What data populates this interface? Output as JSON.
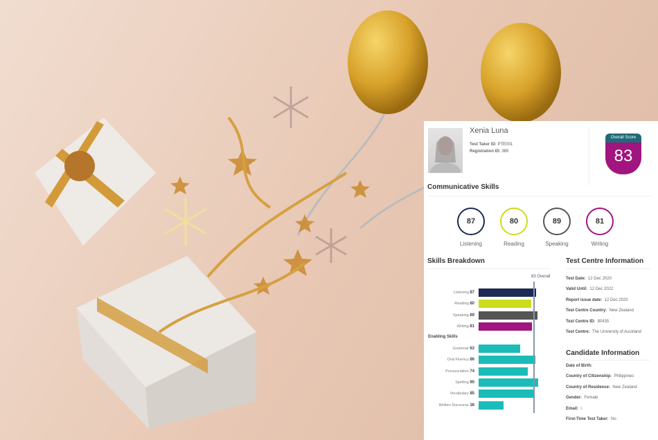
{
  "report": {
    "name": "Xenia Luna",
    "test_taker_id_label": "Test Taker ID:",
    "test_taker_id": "PTE001",
    "registration_id_label": "Registration ID:",
    "registration_id": "385",
    "overall_label": "Overall Score",
    "overall_score": "83",
    "communicative_title": "Communicative Skills",
    "communicative": [
      {
        "label": "Listening",
        "score": "87",
        "color": "#1c2a55"
      },
      {
        "label": "Reading",
        "score": "80",
        "color": "#cddc1c"
      },
      {
        "label": "Speaking",
        "score": "89",
        "color": "#555555"
      },
      {
        "label": "Writing",
        "score": "81",
        "color": "#a0157e"
      }
    ],
    "breakdown_title": "Skills Breakdown",
    "overall_marker": "83 Overall",
    "overall_value": 83,
    "enabling_title": "Enabling Skills",
    "skills": [
      {
        "label": "Listening",
        "score": 87,
        "color": "#1c2a55"
      },
      {
        "label": "Reading",
        "score": 80,
        "color": "#cddc1c"
      },
      {
        "label": "Speaking",
        "score": 89,
        "color": "#555555"
      },
      {
        "label": "Writing",
        "score": 81,
        "color": "#a0157e"
      }
    ],
    "enabling": [
      {
        "label": "Grammar",
        "score": 63,
        "color": "#1bbcb8"
      },
      {
        "label": "Oral Fluency",
        "score": 86,
        "color": "#1bbcb8"
      },
      {
        "label": "Pronunciation",
        "score": 74,
        "color": "#1bbcb8"
      },
      {
        "label": "Spelling",
        "score": 90,
        "color": "#1bbcb8"
      },
      {
        "label": "Vocabulary",
        "score": 85,
        "color": "#1bbcb8"
      },
      {
        "label": "Written Discourse",
        "score": 38,
        "color": "#1bbcb8"
      }
    ],
    "centre_title": "Test Centre Information",
    "centre": [
      {
        "k": "Test Date:",
        "v": "12 Dec 2020"
      },
      {
        "k": "Valid Until:",
        "v": "12 Dec 2022"
      },
      {
        "k": "Report issue date:",
        "v": "12 Dec 2020"
      },
      {
        "k": "Test Centre Country:",
        "v": "New Zealand"
      },
      {
        "k": "Test Centre ID:",
        "v": "80435"
      },
      {
        "k": "Test Centre:",
        "v": "The University of Auckland"
      }
    ],
    "candidate_title": "Candidate Information",
    "candidate": [
      {
        "k": "Date of Birth:",
        "v": ""
      },
      {
        "k": "Country of Citizenship:",
        "v": "Philippines"
      },
      {
        "k": "Country of Residence:",
        "v": "New Zealand"
      },
      {
        "k": "Gender:",
        "v": "Female"
      },
      {
        "k": "Email:",
        "v": "i"
      },
      {
        "k": "First-Time Test Taker:",
        "v": "No"
      }
    ]
  }
}
